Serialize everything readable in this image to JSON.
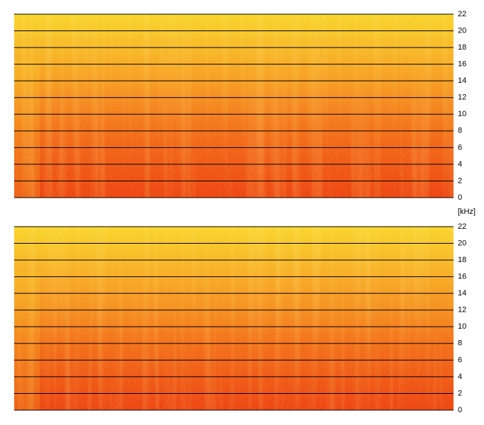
{
  "chart_data": [
    {
      "type": "spectrogram",
      "ylim": [
        0,
        22
      ],
      "yticks": [
        0,
        2,
        4,
        6,
        8,
        10,
        12,
        14,
        16,
        18,
        20,
        22
      ],
      "grid": true,
      "colormap": [
        "#f9dc2c",
        "#f7a424",
        "#f26818",
        "#ec3e10"
      ]
    },
    {
      "type": "spectrogram",
      "ylabel": "[kHz]",
      "ylim": [
        0,
        22
      ],
      "yticks": [
        0,
        2,
        4,
        6,
        8,
        10,
        12,
        14,
        16,
        18,
        20,
        22
      ],
      "grid": true,
      "colormap": [
        "#f9dc2c",
        "#f7a424",
        "#f26818",
        "#ec3e10"
      ]
    }
  ]
}
